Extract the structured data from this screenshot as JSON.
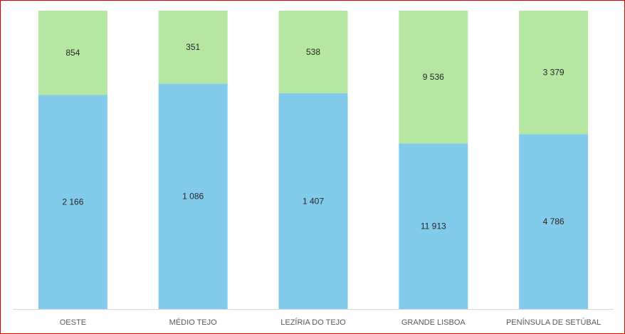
{
  "chart_data": {
    "type": "bar",
    "stacked": "percent",
    "categories": [
      "OESTE",
      "MÉDIO TEJO",
      "LEZÍRIA DO TEJO",
      "GRANDE LISBOA",
      "PENÍNSULA DE SETÚBAL"
    ],
    "series": [
      {
        "values": [
          2166,
          1086,
          1407,
          11913,
          4786
        ],
        "labels": [
          "2 166",
          "1 086",
          "1 407",
          "11 913",
          "4 786"
        ],
        "color": "#83CBEB"
      },
      {
        "values": [
          854,
          351,
          538,
          9536,
          3379
        ],
        "labels": [
          "854",
          "351",
          "538",
          "9 536",
          "3 379"
        ],
        "color": "#B5E6A2"
      }
    ],
    "grid": false,
    "legend": "none",
    "title": "",
    "xlabel": "",
    "ylabel": ""
  },
  "colors": {
    "border": "#e00000",
    "axis": "#d9d9d9"
  }
}
